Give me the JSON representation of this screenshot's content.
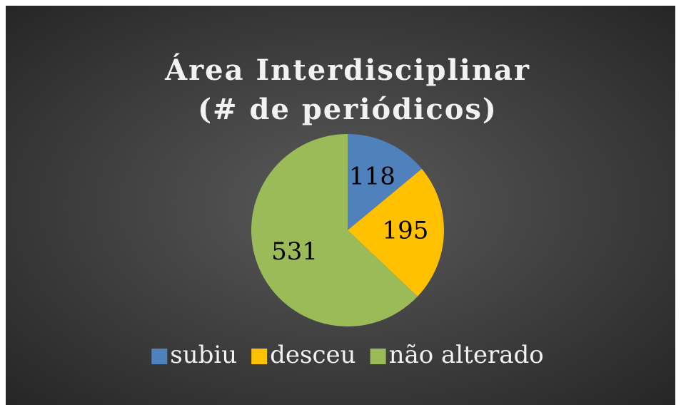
{
  "chart_data": {
    "type": "pie",
    "title": [
      "Área Interdisciplinar",
      "(# de periódicos)"
    ],
    "categories": [
      "subiu",
      "desceu",
      "não alterado"
    ],
    "values": [
      118,
      195,
      531
    ],
    "colors": [
      "#4f81bd",
      "#ffc000",
      "#9bbb59"
    ],
    "legend": "bottom"
  }
}
